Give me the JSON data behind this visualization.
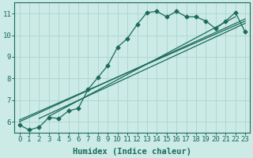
{
  "xlabel": "Humidex (Indice chaleur)",
  "bg_color": "#cceae6",
  "grid_color": "#b0d8d0",
  "line_color": "#1a6b5a",
  "xlim": [
    -0.5,
    23.5
  ],
  "ylim": [
    5.5,
    11.5
  ],
  "xticks": [
    0,
    1,
    2,
    3,
    4,
    5,
    6,
    7,
    8,
    9,
    10,
    11,
    12,
    13,
    14,
    15,
    16,
    17,
    18,
    19,
    20,
    21,
    22,
    23
  ],
  "yticks": [
    6,
    7,
    8,
    9,
    10,
    11
  ],
  "main_series": [
    [
      0,
      5.85
    ],
    [
      1,
      5.62
    ],
    [
      2,
      5.75
    ],
    [
      3,
      6.2
    ],
    [
      4,
      6.15
    ],
    [
      5,
      6.5
    ],
    [
      6,
      6.62
    ],
    [
      7,
      7.5
    ],
    [
      8,
      8.05
    ],
    [
      9,
      8.6
    ],
    [
      10,
      9.45
    ],
    [
      11,
      9.85
    ],
    [
      12,
      10.5
    ],
    [
      13,
      11.05
    ],
    [
      14,
      11.1
    ],
    [
      15,
      10.85
    ],
    [
      16,
      11.1
    ],
    [
      17,
      10.85
    ],
    [
      18,
      10.85
    ],
    [
      19,
      10.65
    ],
    [
      20,
      10.3
    ],
    [
      21,
      10.65
    ],
    [
      22,
      11.05
    ],
    [
      23,
      10.15
    ]
  ],
  "trend_lines": [
    [
      [
        0,
        6.0
      ],
      [
        23,
        10.75
      ]
    ],
    [
      [
        0,
        6.08
      ],
      [
        23,
        10.65
      ]
    ],
    [
      [
        2,
        6.15
      ],
      [
        23,
        10.55
      ]
    ],
    [
      [
        3,
        6.25
      ],
      [
        22,
        10.85
      ]
    ]
  ],
  "marker": "D",
  "markersize": 2.5,
  "linewidth": 0.9,
  "tick_fontsize": 6.5,
  "xlabel_fontsize": 7.5
}
